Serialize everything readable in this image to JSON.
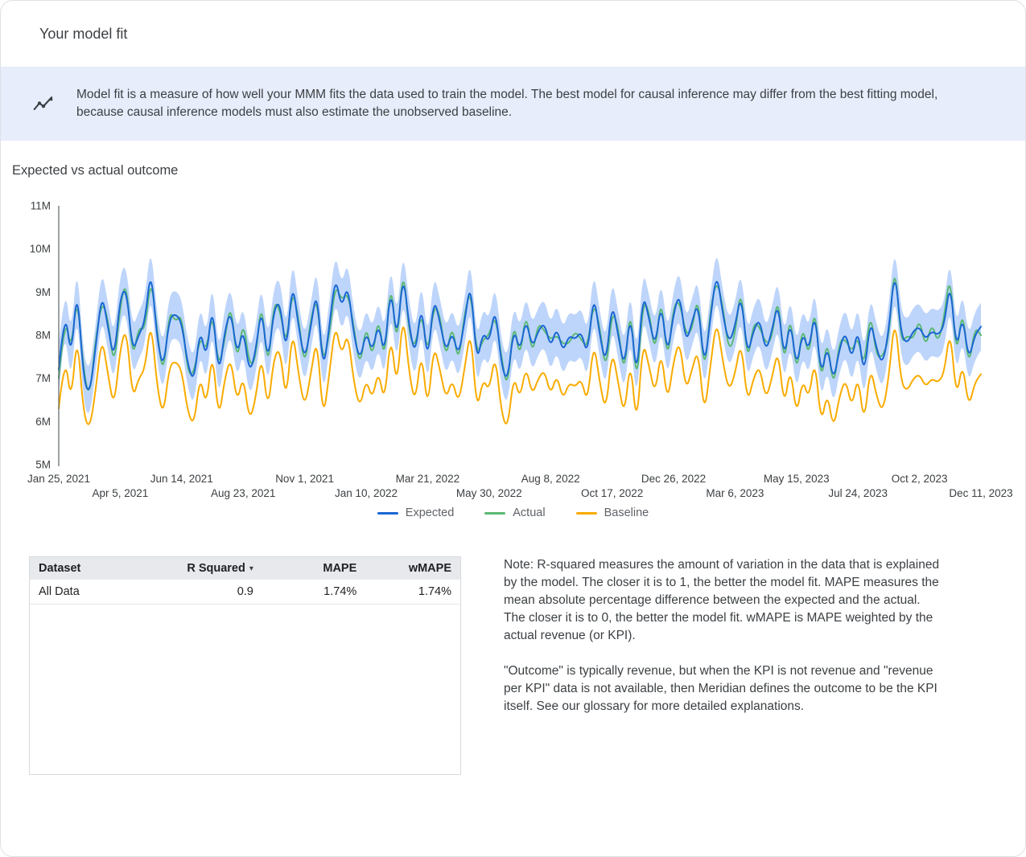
{
  "page": {
    "title": "Your model fit"
  },
  "banner": {
    "icon": "insights-icon",
    "text": "Model fit is a measure of how well your MMM fits the data used to train the model. The best model for causal inference may differ from the best fitting model, because causal inference models must also estimate the unobserved baseline."
  },
  "section": {
    "title": "Expected vs actual outcome"
  },
  "chart_data": {
    "type": "line",
    "title": "Expected vs actual outcome",
    "x_unit": "week",
    "ylim": [
      5,
      11
    ],
    "grid": false,
    "legend_position": "bottom",
    "y_ticks": [
      {
        "label": "5M",
        "value": 5
      },
      {
        "label": "6M",
        "value": 6
      },
      {
        "label": "7M",
        "value": 7
      },
      {
        "label": "8M",
        "value": 8
      },
      {
        "label": "9M",
        "value": 9
      },
      {
        "label": "10M",
        "value": 10
      },
      {
        "label": "11M",
        "value": 11
      }
    ],
    "x_ticks": [
      {
        "label": "Jan 25, 2021",
        "week": 0
      },
      {
        "label": "Apr 5, 2021",
        "week": 10
      },
      {
        "label": "Jun 14, 2021",
        "week": 20
      },
      {
        "label": "Aug 23, 2021",
        "week": 30
      },
      {
        "label": "Nov 1, 2021",
        "week": 40
      },
      {
        "label": "Jan 10, 2022",
        "week": 50
      },
      {
        "label": "Mar 21, 2022",
        "week": 60
      },
      {
        "label": "May 30, 2022",
        "week": 70
      },
      {
        "label": "Aug 8, 2022",
        "week": 80
      },
      {
        "label": "Oct 17, 2022",
        "week": 90
      },
      {
        "label": "Dec 26, 2022",
        "week": 100
      },
      {
        "label": "Mar 6, 2023",
        "week": 110
      },
      {
        "label": "May 15, 2023",
        "week": 120
      },
      {
        "label": "Jul 24, 2023",
        "week": 130
      },
      {
        "label": "Oct 2, 2023",
        "week": 140
      },
      {
        "label": "Dec 11, 2023",
        "week": 150
      }
    ],
    "band": {
      "series": "Expected",
      "halfwidth": 0.55,
      "color": "#a8c7fa",
      "opacity": 0.75
    },
    "series": [
      {
        "name": "Expected",
        "color": "#1967d2",
        "values": [
          7.2,
          8.7,
          7.4,
          9.2,
          7.0,
          6.6,
          7.7,
          9.0,
          8.2,
          7.4,
          8.9,
          9.1,
          7.6,
          8.0,
          8.3,
          9.6,
          7.9,
          7.2,
          8.4,
          8.5,
          8.3,
          7.3,
          6.9,
          8.2,
          7.4,
          8.8,
          7.0,
          8.1,
          8.6,
          7.5,
          8.2,
          7.1,
          7.6,
          8.7,
          7.3,
          8.6,
          8.8,
          7.5,
          9.3,
          8.2,
          7.4,
          8.2,
          9.1,
          7.1,
          8.2,
          9.4,
          8.6,
          9.2,
          8.0,
          7.4,
          8.1,
          7.6,
          8.3,
          7.5,
          9.2,
          7.8,
          9.5,
          8.2,
          7.5,
          8.8,
          7.3,
          8.9,
          8.3,
          7.6,
          8.1,
          7.5,
          8.3,
          9.3,
          7.3,
          8.1,
          7.8,
          8.7,
          7.3,
          6.9,
          8.2,
          7.6,
          8.4,
          7.7,
          8.1,
          8.3,
          7.7,
          8.2,
          7.6,
          8.0,
          7.9,
          8.1,
          7.5,
          9.0,
          8.0,
          7.3,
          8.8,
          8.0,
          7.2,
          8.6,
          6.9,
          9.0,
          8.4,
          7.7,
          8.8,
          7.5,
          8.5,
          9.0,
          7.8,
          8.3,
          8.8,
          7.2,
          8.4,
          9.5,
          8.5,
          7.8,
          8.2,
          9.0,
          7.5,
          8.1,
          8.4,
          7.6,
          8.1,
          8.8,
          7.4,
          8.4,
          7.2,
          8.1,
          7.6,
          8.6,
          7.0,
          7.8,
          6.9,
          7.7,
          8.1,
          7.4,
          8.2,
          7.0,
          8.4,
          7.7,
          7.3,
          8.1,
          9.6,
          8.0,
          7.8,
          8.1,
          8.2,
          7.9,
          8.1,
          8.0,
          8.2,
          9.3,
          7.6,
          8.5,
          7.4,
          8.0,
          8.2
        ]
      },
      {
        "name": "Actual",
        "color": "#5bb974",
        "values": [
          7.0,
          8.5,
          7.6,
          9.0,
          7.2,
          6.5,
          7.9,
          8.8,
          8.4,
          7.2,
          8.7,
          9.3,
          7.4,
          8.2,
          8.1,
          9.4,
          8.1,
          7.0,
          8.6,
          8.3,
          8.5,
          7.1,
          7.1,
          8.0,
          7.6,
          8.6,
          7.2,
          7.9,
          8.8,
          7.3,
          8.4,
          7.3,
          7.4,
          8.9,
          7.1,
          8.8,
          8.6,
          7.7,
          9.1,
          8.4,
          7.2,
          8.4,
          8.9,
          7.3,
          8.0,
          9.2,
          8.8,
          9.0,
          8.2,
          7.2,
          8.3,
          7.4,
          8.5,
          7.3,
          9.4,
          7.6,
          9.7,
          8.0,
          7.7,
          8.6,
          7.5,
          8.7,
          8.5,
          7.4,
          8.3,
          7.3,
          8.5,
          9.1,
          7.5,
          7.9,
          8.0,
          8.5,
          7.5,
          6.7,
          8.4,
          7.4,
          8.6,
          7.5,
          8.3,
          8.1,
          7.9,
          8.0,
          7.8,
          7.8,
          8.1,
          7.9,
          7.7,
          8.8,
          8.2,
          7.1,
          8.6,
          8.2,
          7.0,
          8.8,
          6.7,
          8.8,
          8.6,
          7.5,
          9.0,
          7.3,
          8.7,
          8.8,
          8.0,
          8.1,
          9.0,
          7.0,
          8.6,
          9.3,
          8.7,
          7.6,
          8.0,
          9.2,
          7.3,
          8.3,
          8.2,
          7.8,
          7.9,
          9.0,
          7.2,
          8.6,
          7.0,
          8.3,
          7.4,
          8.8,
          6.8,
          8.0,
          6.7,
          7.9,
          7.9,
          7.6,
          8.0,
          7.2,
          8.6,
          7.5,
          7.5,
          7.9,
          9.8,
          7.8,
          8.0,
          7.9,
          8.4,
          7.7,
          8.3,
          7.8,
          8.4,
          9.5,
          7.4,
          8.7,
          7.2,
          8.2,
          8.0
        ]
      },
      {
        "name": "Baseline",
        "color": "#f9ab00",
        "values": [
          6.3,
          7.6,
          6.4,
          8.1,
          6.2,
          5.8,
          6.7,
          8.0,
          7.1,
          6.3,
          7.7,
          8.2,
          6.5,
          7.0,
          7.2,
          8.4,
          6.8,
          6.1,
          7.3,
          7.4,
          7.2,
          6.2,
          5.9,
          7.1,
          6.3,
          7.7,
          6.0,
          7.0,
          7.5,
          6.4,
          7.1,
          6.0,
          6.5,
          7.6,
          6.2,
          7.5,
          7.7,
          6.4,
          8.2,
          7.1,
          6.3,
          7.1,
          8.0,
          6.0,
          7.1,
          8.3,
          7.5,
          8.1,
          6.9,
          6.3,
          7.0,
          6.5,
          7.2,
          6.4,
          8.1,
          6.7,
          8.6,
          7.1,
          6.4,
          7.7,
          6.2,
          7.8,
          7.2,
          6.5,
          7.0,
          6.4,
          7.2,
          8.2,
          6.2,
          7.0,
          6.7,
          7.6,
          6.2,
          5.8,
          7.1,
          6.5,
          7.3,
          6.6,
          7.0,
          7.2,
          6.6,
          7.1,
          6.5,
          6.9,
          6.8,
          7.0,
          6.4,
          7.9,
          6.9,
          6.2,
          7.7,
          6.9,
          6.1,
          7.5,
          5.8,
          7.9,
          7.3,
          6.6,
          7.7,
          6.4,
          7.4,
          7.9,
          6.7,
          7.2,
          7.7,
          6.1,
          7.3,
          8.4,
          7.4,
          6.7,
          7.1,
          7.9,
          6.4,
          7.0,
          7.3,
          6.5,
          7.0,
          7.7,
          6.3,
          7.3,
          6.1,
          7.0,
          6.5,
          7.5,
          5.9,
          6.7,
          5.8,
          6.6,
          7.0,
          6.3,
          7.1,
          5.9,
          7.3,
          6.6,
          6.2,
          7.0,
          8.5,
          6.9,
          6.7,
          7.0,
          7.1,
          6.8,
          7.0,
          6.9,
          7.1,
          8.2,
          6.5,
          7.4,
          6.3,
          6.9,
          7.1
        ]
      }
    ]
  },
  "table": {
    "columns": [
      {
        "label": "Dataset"
      },
      {
        "label": "R Squared",
        "sort": "desc"
      },
      {
        "label": "MAPE"
      },
      {
        "label": "wMAPE"
      }
    ],
    "rows": [
      [
        "All Data",
        "0.9",
        "1.74%",
        "1.74%"
      ]
    ]
  },
  "notes": {
    "paragraph1": "Note: R-squared measures the amount of variation in the data that is explained by the model. The closer it is to 1, the better the model fit. MAPE measures the mean absolute percentage difference between the expected and the actual. The closer it is to 0, the better the model fit. wMAPE is MAPE weighted by the actual revenue (or KPI).",
    "paragraph2": "\"Outcome\" is typically revenue, but when the KPI is not revenue and \"revenue per KPI\" data is not available, then Meridian defines the outcome to be the KPI itself. See our glossary for more detailed explanations."
  },
  "colors": {
    "banner_bg": "#e7edfb",
    "expected": "#1967d2",
    "actual": "#5bb974",
    "baseline": "#f9ab00",
    "band": "#a8c7fa"
  }
}
